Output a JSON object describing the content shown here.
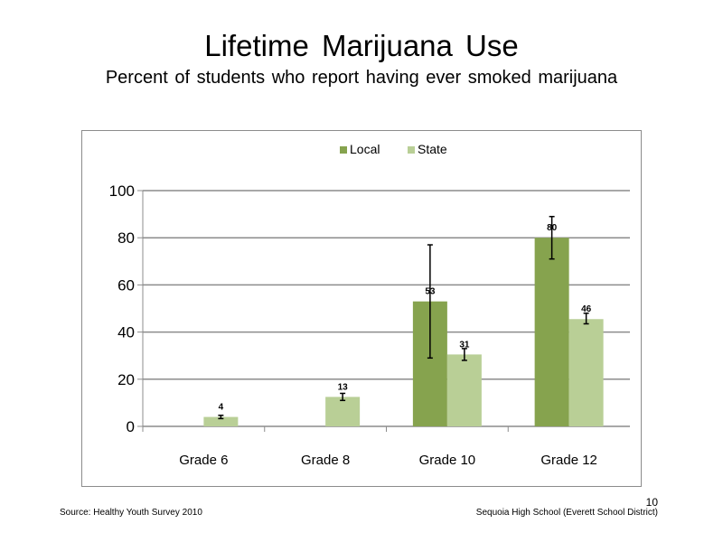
{
  "slide": {
    "title": "Lifetime  Marijuana  Use",
    "subtitle": "Percent of students who report having ever smoked marijuana",
    "source": "Source: Healthy Youth Survey 2010",
    "school": "Sequoia High School (Everett School District)",
    "page_number": "10"
  },
  "chart_data": {
    "type": "bar",
    "categories": [
      "Grade 6",
      "Grade 8",
      "Grade 10",
      "Grade 12"
    ],
    "series": [
      {
        "name": "Local",
        "color": "#86a34e",
        "values": [
          null,
          null,
          53,
          80
        ],
        "labels": [
          "",
          "",
          "53",
          "80"
        ],
        "error_low": [
          null,
          null,
          29,
          71
        ],
        "error_high": [
          null,
          null,
          77,
          89
        ]
      },
      {
        "name": "State",
        "color": "#b9cf96",
        "values": [
          4,
          12.5,
          30.5,
          45.5
        ],
        "labels": [
          "4",
          "13",
          "31",
          "46"
        ],
        "error_low": [
          3.3,
          11,
          28,
          43.5
        ],
        "error_high": [
          4.7,
          14,
          33,
          48
        ]
      }
    ],
    "ylim": [
      0,
      100
    ],
    "yticks": [
      "0",
      "20",
      "40",
      "60",
      "80",
      "100"
    ],
    "grid": true,
    "legend_position": "top-center"
  }
}
